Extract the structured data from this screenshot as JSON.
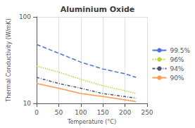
{
  "chart_data": {
    "type": "line",
    "title": "Aluminium Oxide",
    "xlabel": "Temperature (°C)",
    "ylabel": "Thermal Conductivity (W/mK)",
    "x": [
      0,
      50,
      100,
      150,
      200,
      225
    ],
    "series": [
      {
        "name": "99.5%",
        "line_style": "dashed",
        "values": [
          48,
          38,
          30,
          25,
          22,
          20
        ]
      },
      {
        "name": "96%",
        "line_style": "dotted",
        "values": [
          27,
          23,
          19,
          16,
          14,
          13
        ]
      },
      {
        "name": "94%",
        "line_style": "dashdot",
        "values": [
          20,
          17,
          15,
          13,
          12,
          11.5
        ]
      },
      {
        "name": "90%",
        "line_style": "solid",
        "values": [
          17,
          15,
          13,
          12,
          11,
          10.5
        ]
      }
    ],
    "xlim": [
      0,
      250
    ],
    "xticks": [
      0,
      50,
      100,
      150,
      200,
      250
    ],
    "ylim": [
      10,
      100
    ],
    "yticks": [
      10,
      100
    ],
    "log": "y",
    "grid": true,
    "legend": "right"
  }
}
